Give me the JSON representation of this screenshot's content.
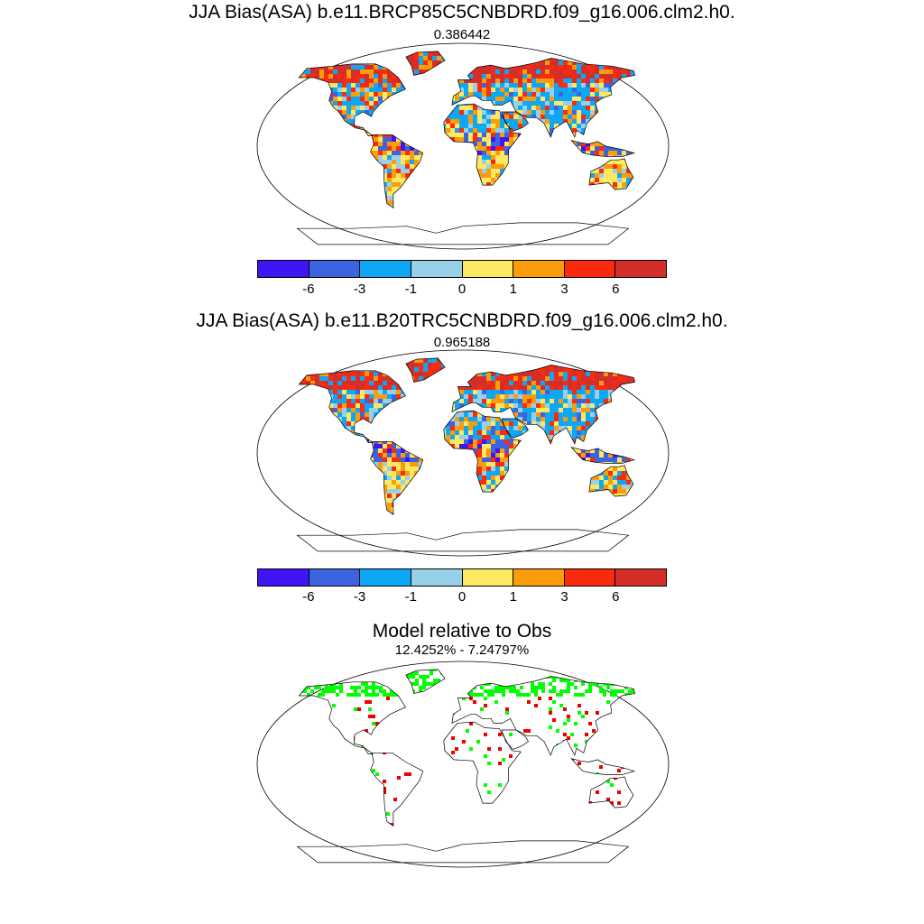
{
  "panels": [
    {
      "title": "JJA Bias(ASA) b.e11.BRCP85C5CNBDRD.f09_g16.006.clm2.h0.",
      "subtitle": "0.386442",
      "kind": "bias"
    },
    {
      "title": "JJA Bias(ASA) b.e11.B20TRC5CNBDRD.f09_g16.006.clm2.h0.",
      "subtitle": "0.965188",
      "kind": "bias"
    },
    {
      "title": "Model relative to Obs",
      "subtitle": "12.4252% - 7.24797%",
      "kind": "relative"
    }
  ],
  "colorbar": {
    "labels": [
      "-6",
      "-3",
      "-1",
      "0",
      "1",
      "3",
      "6"
    ],
    "colors": [
      "#3f14f5",
      "#3d64e0",
      "#0ea7f5",
      "#98cfe9",
      "#fde961",
      "#fb9d0a",
      "#fb2a0c",
      "#d42e2b"
    ]
  },
  "relative_colors": {
    "better": "#00ff00",
    "worse": "#ee0000"
  }
}
